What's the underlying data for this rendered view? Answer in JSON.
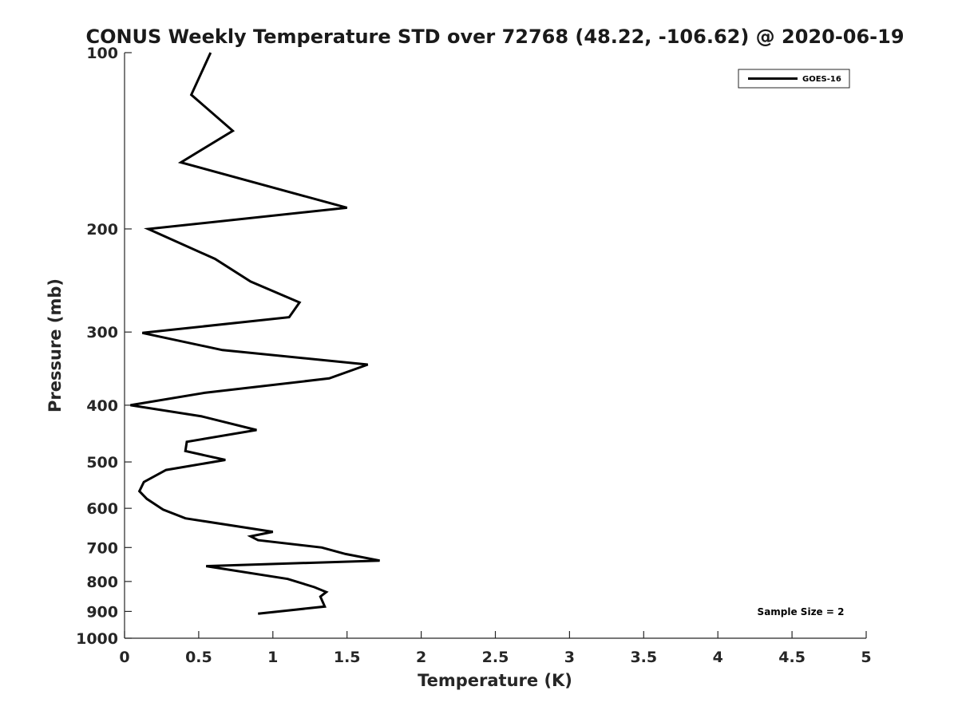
{
  "chart_data": {
    "type": "line",
    "title": "CONUS Weekly Temperature STD over 72768 (48.22, -106.62) @ 2020-06-19",
    "xlabel": "Temperature (K)",
    "ylabel": "Pressure (mb)",
    "xlim": [
      0,
      5
    ],
    "ylim": [
      100,
      1000
    ],
    "y_scale": "log",
    "y_reversed": true,
    "grid": false,
    "legend_position": "top-right",
    "x_ticks": [
      "0",
      "0.5",
      "1",
      "1.5",
      "2",
      "2.5",
      "3",
      "3.5",
      "4",
      "4.5",
      "5"
    ],
    "y_ticks": [
      "100",
      "200",
      "300",
      "400",
      "500",
      "600",
      "700",
      "800",
      "900",
      "1000"
    ],
    "annotation": "Sample Size = 2",
    "series": [
      {
        "name": "GOES-16",
        "color": "#000000",
        "points": [
          {
            "x": 0.58,
            "p": 100
          },
          {
            "x": 0.45,
            "p": 118
          },
          {
            "x": 0.73,
            "p": 136
          },
          {
            "x": 0.38,
            "p": 154
          },
          {
            "x": 1.5,
            "p": 184
          },
          {
            "x": 0.16,
            "p": 200
          },
          {
            "x": 0.61,
            "p": 225
          },
          {
            "x": 0.85,
            "p": 246
          },
          {
            "x": 1.18,
            "p": 267
          },
          {
            "x": 1.11,
            "p": 283
          },
          {
            "x": 0.12,
            "p": 301
          },
          {
            "x": 0.66,
            "p": 322
          },
          {
            "x": 1.64,
            "p": 341
          },
          {
            "x": 1.38,
            "p": 360
          },
          {
            "x": 0.54,
            "p": 381
          },
          {
            "x": 0.04,
            "p": 400
          },
          {
            "x": 0.52,
            "p": 418
          },
          {
            "x": 0.89,
            "p": 441
          },
          {
            "x": 0.42,
            "p": 462
          },
          {
            "x": 0.41,
            "p": 479
          },
          {
            "x": 0.68,
            "p": 496
          },
          {
            "x": 0.28,
            "p": 516
          },
          {
            "x": 0.13,
            "p": 541
          },
          {
            "x": 0.1,
            "p": 561
          },
          {
            "x": 0.15,
            "p": 578
          },
          {
            "x": 0.26,
            "p": 603
          },
          {
            "x": 0.41,
            "p": 624
          },
          {
            "x": 1.0,
            "p": 658
          },
          {
            "x": 0.85,
            "p": 670
          },
          {
            "x": 0.9,
            "p": 680
          },
          {
            "x": 1.33,
            "p": 700
          },
          {
            "x": 1.49,
            "p": 718
          },
          {
            "x": 1.72,
            "p": 737
          },
          {
            "x": 0.55,
            "p": 753
          },
          {
            "x": 1.1,
            "p": 792
          },
          {
            "x": 1.28,
            "p": 818
          },
          {
            "x": 1.36,
            "p": 834
          },
          {
            "x": 1.32,
            "p": 849
          },
          {
            "x": 1.35,
            "p": 883
          },
          {
            "x": 0.9,
            "p": 908
          }
        ]
      }
    ]
  }
}
